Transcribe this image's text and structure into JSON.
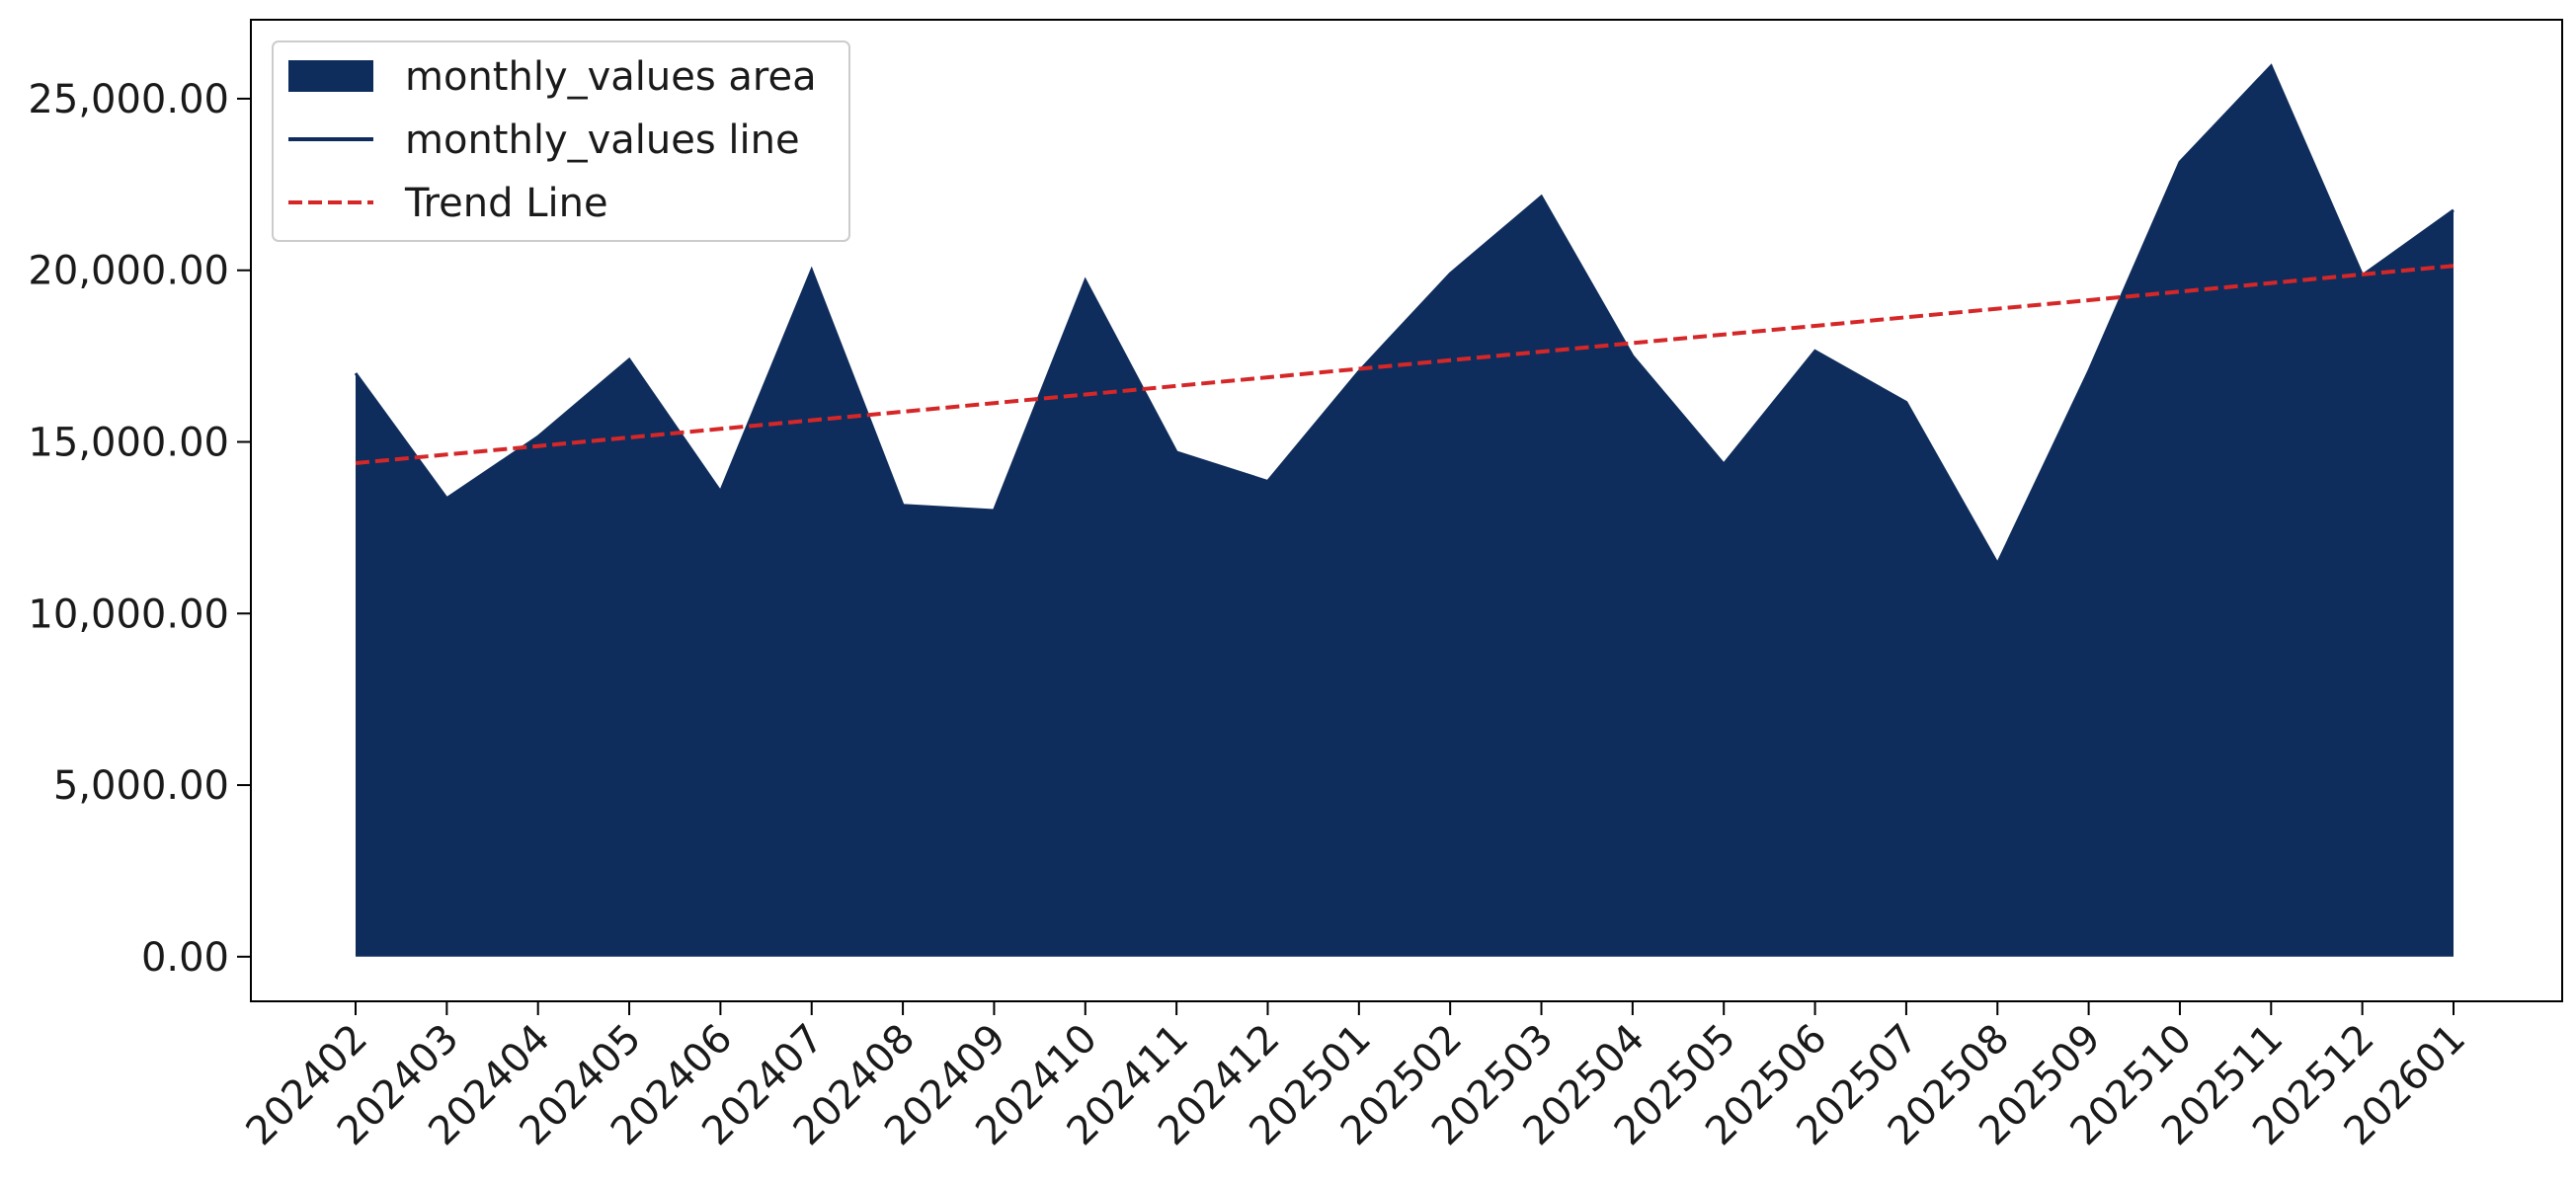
{
  "chart_data": {
    "type": "area",
    "title": "",
    "xlabel": "",
    "ylabel": "",
    "categories": [
      "202402",
      "202403",
      "202404",
      "202405",
      "202406",
      "202407",
      "202408",
      "202409",
      "202410",
      "202411",
      "202412",
      "202501",
      "202502",
      "202503",
      "202504",
      "202505",
      "202506",
      "202507",
      "202508",
      "202509",
      "202510",
      "202511",
      "202512",
      "202601"
    ],
    "series": [
      {
        "name": "monthly_values area",
        "kind": "area",
        "color": "#0f2d5c",
        "values": [
          17000,
          13350,
          15150,
          17400,
          13550,
          20000,
          13150,
          13000,
          19700,
          14700,
          13850,
          17050,
          19900,
          22150,
          17500,
          14350,
          17650,
          16150,
          11450,
          17050,
          23150,
          25950,
          19850,
          21750
        ]
      },
      {
        "name": "monthly_values line",
        "kind": "line",
        "color": "#0f2d5c",
        "values": [
          17000,
          13350,
          15150,
          17400,
          13550,
          20000,
          13150,
          13000,
          19700,
          14700,
          13850,
          17050,
          19900,
          22150,
          17500,
          14350,
          17650,
          16150,
          11450,
          17050,
          23150,
          25950,
          19850,
          21750
        ]
      },
      {
        "name": "Trend Line",
        "kind": "dashed-line",
        "color": "#d62728",
        "values": [
          14380,
          14630,
          14880,
          15130,
          15380,
          15630,
          15880,
          16130,
          16380,
          16630,
          16880,
          17130,
          17380,
          17630,
          17880,
          18130,
          18380,
          18630,
          18880,
          19130,
          19380,
          19630,
          19880,
          20130
        ]
      }
    ],
    "yticks": [
      0,
      5000,
      10000,
      15000,
      20000,
      25000
    ],
    "ytick_labels": [
      "0.00",
      "5,000.00",
      "10,000.00",
      "15,000.00",
      "20,000.00",
      "25,000.00"
    ],
    "ylim": [
      -1300,
      27300
    ],
    "grid": false,
    "legend_position": "top-left"
  }
}
